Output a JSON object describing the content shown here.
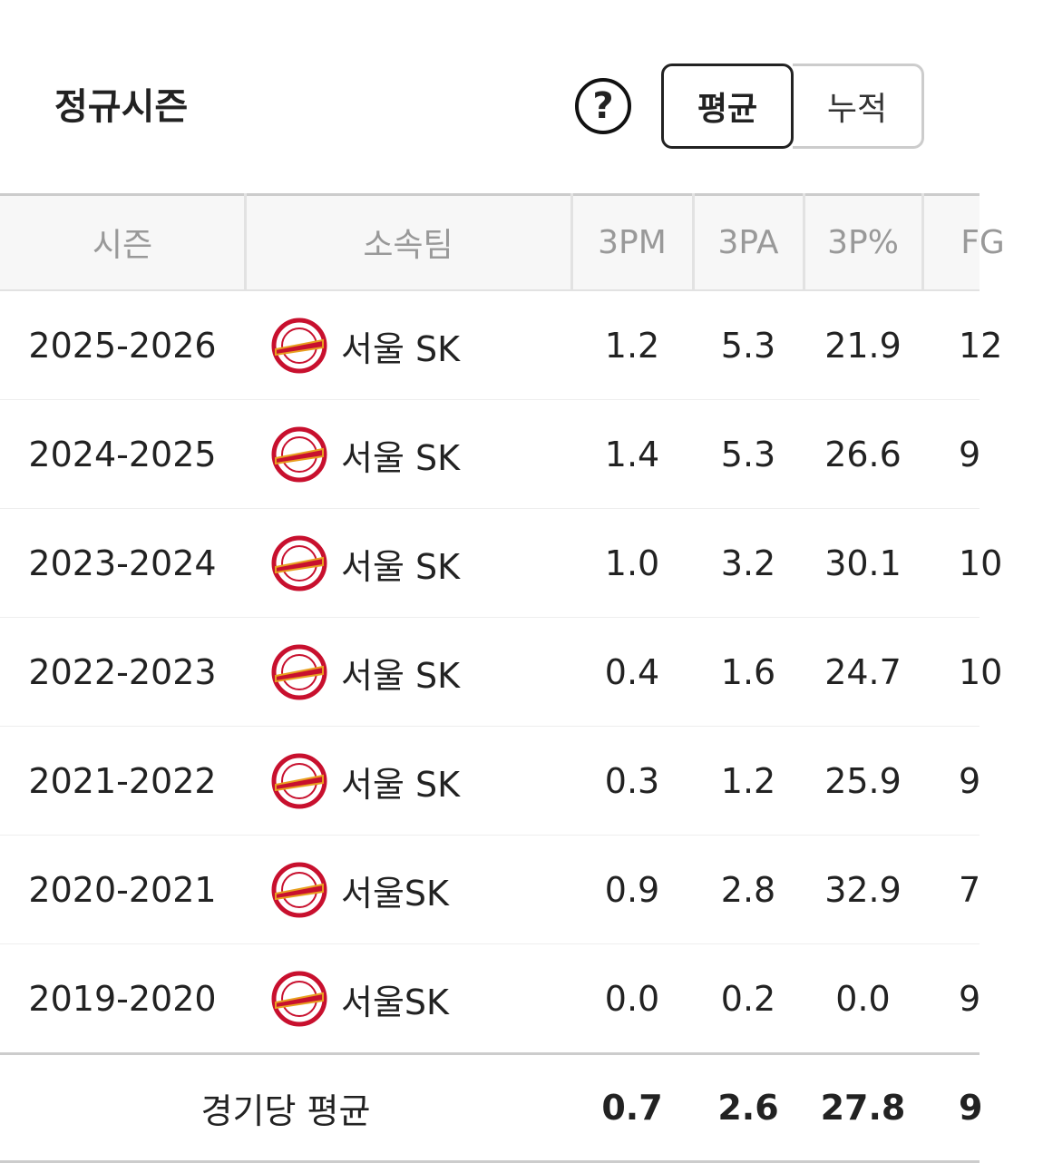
{
  "header": {
    "title": "정규시즌",
    "help": "?",
    "toggle": [
      "평균",
      "누적"
    ]
  },
  "table": {
    "columns": [
      "시즌",
      "소속팀",
      "3PM",
      "3PA",
      "3P%",
      "FG"
    ],
    "rows": [
      [
        "2025-2026",
        "서울 SK",
        "1.2",
        "5.3",
        "21.9",
        "12"
      ],
      [
        "2024-2025",
        "서울 SK",
        "1.4",
        "5.3",
        "26.6",
        "9"
      ],
      [
        "2023-2024",
        "서울 SK",
        "1.0",
        "3.2",
        "30.1",
        "10"
      ],
      [
        "2022-2023",
        "서울 SK",
        "0.4",
        "1.6",
        "24.7",
        "10"
      ],
      [
        "2021-2022",
        "서울 SK",
        "0.3",
        "1.2",
        "25.9",
        "9"
      ],
      [
        "2020-2021",
        "서울SK",
        "0.9",
        "2.8",
        "32.9",
        "7"
      ],
      [
        "2019-2020",
        "서울SK",
        "0.0",
        "0.2",
        "0.0",
        "9"
      ]
    ],
    "footer": {
      "label": "경기당 평균",
      "values": [
        "0.7",
        "2.6",
        "27.8",
        "9"
      ]
    }
  }
}
